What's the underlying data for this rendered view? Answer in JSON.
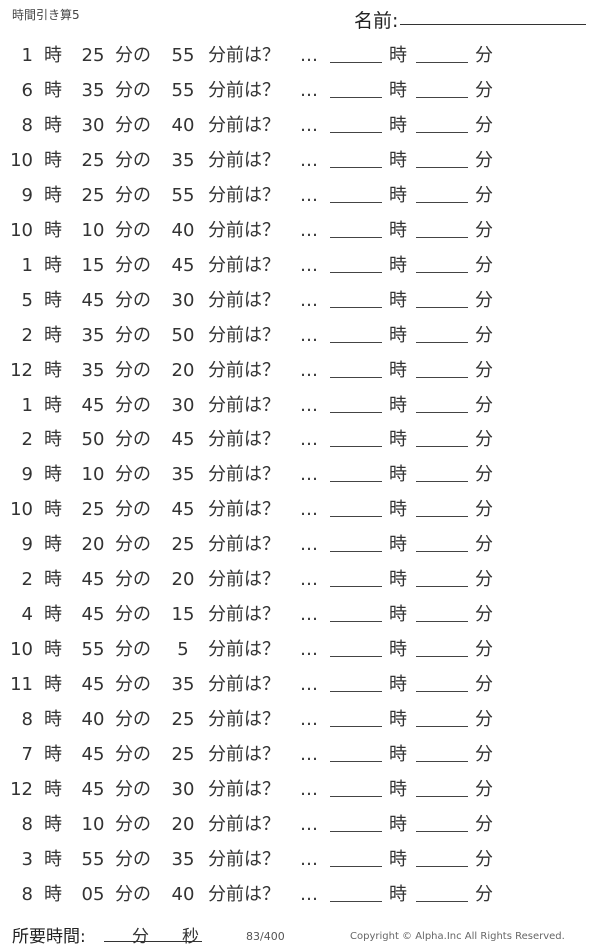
{
  "header": {
    "title": "時間引き算5",
    "name_label": "名前:"
  },
  "labels": {
    "hour": "時",
    "min_of": "分の",
    "min_before": "分前は？",
    "ellipsis": "…",
    "ans_hour": "時",
    "ans_min": "分"
  },
  "problems": [
    {
      "h": "1",
      "m": "25",
      "d": "55"
    },
    {
      "h": "6",
      "m": "35",
      "d": "55"
    },
    {
      "h": "8",
      "m": "30",
      "d": "40"
    },
    {
      "h": "10",
      "m": "25",
      "d": "35"
    },
    {
      "h": "9",
      "m": "25",
      "d": "55"
    },
    {
      "h": "10",
      "m": "10",
      "d": "40"
    },
    {
      "h": "1",
      "m": "15",
      "d": "45"
    },
    {
      "h": "5",
      "m": "45",
      "d": "30"
    },
    {
      "h": "2",
      "m": "35",
      "d": "50"
    },
    {
      "h": "12",
      "m": "35",
      "d": "20"
    },
    {
      "h": "1",
      "m": "45",
      "d": "30"
    },
    {
      "h": "2",
      "m": "50",
      "d": "45"
    },
    {
      "h": "9",
      "m": "10",
      "d": "35"
    },
    {
      "h": "10",
      "m": "25",
      "d": "45"
    },
    {
      "h": "9",
      "m": "20",
      "d": "25"
    },
    {
      "h": "2",
      "m": "45",
      "d": "20"
    },
    {
      "h": "4",
      "m": "45",
      "d": "15"
    },
    {
      "h": "10",
      "m": "55",
      "d": "5"
    },
    {
      "h": "11",
      "m": "45",
      "d": "35"
    },
    {
      "h": "8",
      "m": "40",
      "d": "25"
    },
    {
      "h": "7",
      "m": "45",
      "d": "25"
    },
    {
      "h": "12",
      "m": "45",
      "d": "30"
    },
    {
      "h": "8",
      "m": "10",
      "d": "20"
    },
    {
      "h": "3",
      "m": "55",
      "d": "35"
    },
    {
      "h": "8",
      "m": "05",
      "d": "40"
    }
  ],
  "footer": {
    "time_label": "所要時間:",
    "min": "分",
    "sec": "秒",
    "page": "83/400",
    "copyright": "Copyright ©  Alpha.Inc All Rights Reserved."
  }
}
